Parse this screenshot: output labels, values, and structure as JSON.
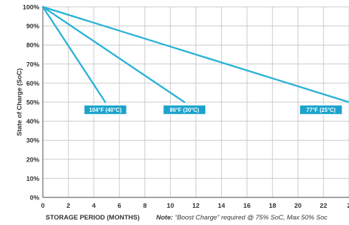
{
  "colors": {
    "background": "#ffffff",
    "grid": "#c9c9c9",
    "axis": "#666666",
    "line": "#2bb3d6",
    "label_bg": "#1ba3cc",
    "label_border": "#ffffff"
  },
  "chart_data": {
    "type": "line",
    "title": "",
    "xlabel": "STORAGE PERIOD (MONTHS)",
    "ylabel": "State of Charge (SoC)",
    "note_label": "Note:",
    "note_text": " “Boost Charge” required @ 75% SoC, Max 50% Soc",
    "xlim": [
      0,
      24
    ],
    "ylim": [
      0,
      100
    ],
    "x_ticks": [
      "0",
      "2",
      "4",
      "6",
      "8",
      "10",
      "12",
      "14",
      "16",
      "18",
      "20",
      "22",
      "2"
    ],
    "y_ticks": [
      "0%",
      "10%",
      "20%",
      "30%",
      "40%",
      "50%",
      "60%",
      "70%",
      "80%",
      "90%",
      "100%"
    ],
    "grid": true,
    "series": [
      {
        "name": "104°F (40°C)",
        "x": [
          0,
          4.9
        ],
        "y": [
          100,
          50
        ],
        "label_at": {
          "x": 4.9,
          "y": 46
        }
      },
      {
        "name": "86°F (30°C)",
        "x": [
          0,
          11.1
        ],
        "y": [
          100,
          50
        ],
        "label_at": {
          "x": 11.1,
          "y": 46
        }
      },
      {
        "name": "77°F (25°C)",
        "x": [
          0,
          24
        ],
        "y": [
          100,
          50
        ],
        "label_at": {
          "x": 21.8,
          "y": 46
        }
      }
    ]
  }
}
